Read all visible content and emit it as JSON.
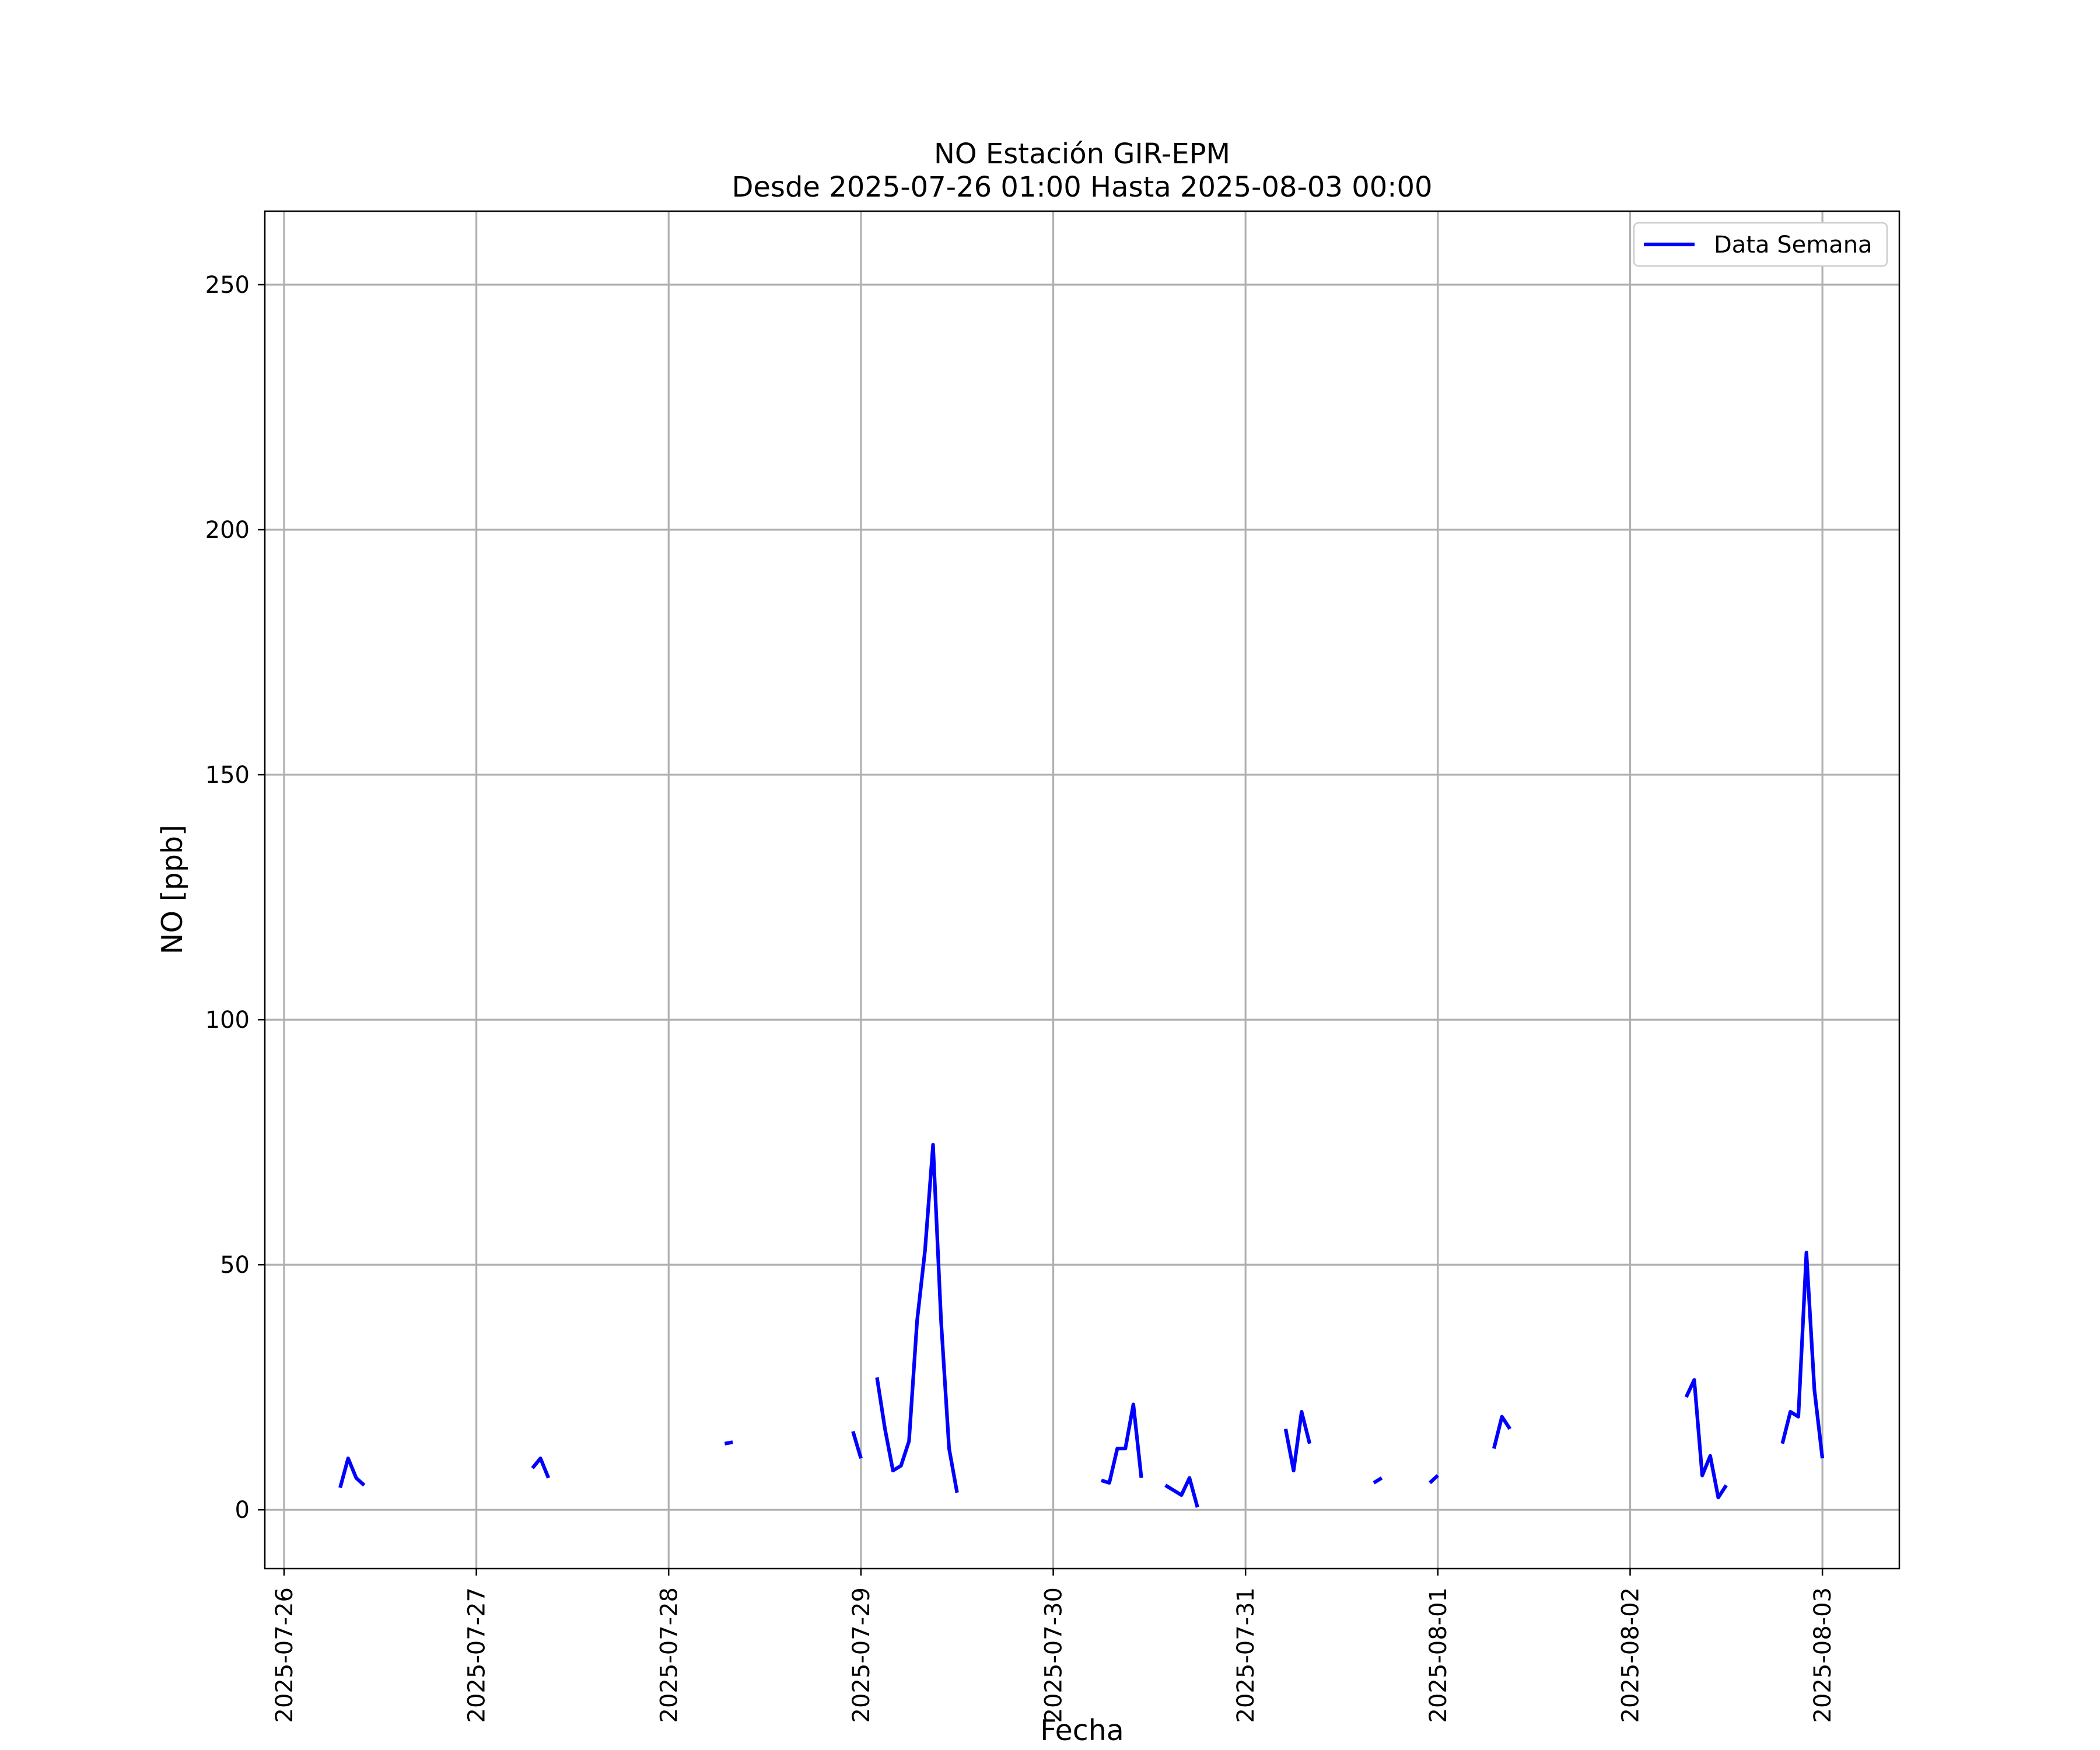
{
  "chart_data": {
    "type": "line",
    "title": "NO Estación GIR-EPM",
    "subtitle": "Desde 2025-07-26 01:00 Hasta 2025-08-03 00:00",
    "xlabel": "Fecha",
    "ylabel": "NO [ppb]",
    "x_ticks": [
      "2025-07-26",
      "2025-07-27",
      "2025-07-28",
      "2025-07-29",
      "2025-07-30",
      "2025-07-31",
      "2025-08-01",
      "2025-08-02",
      "2025-08-03"
    ],
    "y_ticks": [
      0,
      50,
      100,
      150,
      200,
      250
    ],
    "xlim": [
      "2025-07-25 21:36",
      "2025-08-03 09:36"
    ],
    "ylim": [
      -12,
      265
    ],
    "grid": true,
    "legend_position": "upper right",
    "colors": {
      "line": "#0000ff",
      "grid": "#b0b0b0",
      "frame": "#000000",
      "background": "#ffffff"
    },
    "series": [
      {
        "name": "Data Semana",
        "segments": [
          [
            [
              "2025-07-26 07:00",
              4.5
            ],
            [
              "2025-07-26 08:00",
              10.5
            ],
            [
              "2025-07-26 09:00",
              6.5
            ],
            [
              "2025-07-26 10:00",
              5
            ]
          ],
          [
            [
              "2025-07-27 07:00",
              8.5
            ],
            [
              "2025-07-27 08:00",
              10.5
            ],
            [
              "2025-07-27 09:00",
              6.5
            ]
          ],
          [
            [
              "2025-07-28 07:00",
              13.5
            ],
            [
              "2025-07-28 08:00",
              13.8
            ]
          ],
          [
            [
              "2025-07-28 23:00",
              16
            ],
            [
              "2025-07-29 00:00",
              10.5
            ]
          ],
          [
            [
              "2025-07-29 02:00",
              27
            ],
            [
              "2025-07-29 03:00",
              16.5
            ],
            [
              "2025-07-29 04:00",
              8
            ],
            [
              "2025-07-29 05:00",
              9
            ],
            [
              "2025-07-29 06:00",
              14
            ],
            [
              "2025-07-29 07:00",
              38.5
            ],
            [
              "2025-07-29 08:00",
              53
            ],
            [
              "2025-07-29 09:00",
              74.5
            ],
            [
              "2025-07-29 10:00",
              38.5
            ],
            [
              "2025-07-29 11:00",
              12.5
            ],
            [
              "2025-07-29 12:00",
              3.5
            ]
          ],
          [
            [
              "2025-07-30 06:00",
              6
            ],
            [
              "2025-07-30 07:00",
              5.5
            ],
            [
              "2025-07-30 08:00",
              12.5
            ],
            [
              "2025-07-30 09:00",
              12.5
            ],
            [
              "2025-07-30 10:00",
              21.5
            ],
            [
              "2025-07-30 11:00",
              6.5
            ]
          ],
          [
            [
              "2025-07-30 14:00",
              5
            ],
            [
              "2025-07-30 15:00",
              4
            ],
            [
              "2025-07-30 16:00",
              3
            ],
            [
              "2025-07-30 17:00",
              6.5
            ],
            [
              "2025-07-30 18:00",
              0.5
            ]
          ],
          [
            [
              "2025-07-31 05:00",
              16.5
            ],
            [
              "2025-07-31 06:00",
              8
            ],
            [
              "2025-07-31 07:00",
              20
            ],
            [
              "2025-07-31 08:00",
              13.5
            ]
          ],
          [
            [
              "2025-07-31 16:00",
              5.5
            ],
            [
              "2025-07-31 17:00",
              6.5
            ]
          ],
          [
            [
              "2025-07-31 23:00",
              5.5
            ],
            [
              "2025-08-01 00:00",
              7
            ]
          ],
          [
            [
              "2025-08-01 07:00",
              12.5
            ],
            [
              "2025-08-01 08:00",
              19
            ],
            [
              "2025-08-01 09:00",
              16.5
            ]
          ],
          [
            [
              "2025-08-02 07:00",
              23
            ],
            [
              "2025-08-02 08:00",
              26.5
            ],
            [
              "2025-08-02 09:00",
              7
            ],
            [
              "2025-08-02 10:00",
              11
            ],
            [
              "2025-08-02 11:00",
              2.5
            ],
            [
              "2025-08-02 12:00",
              5
            ]
          ],
          [
            [
              "2025-08-02 19:00",
              13.5
            ],
            [
              "2025-08-02 20:00",
              20
            ],
            [
              "2025-08-02 21:00",
              19
            ],
            [
              "2025-08-02 22:00",
              52.5
            ],
            [
              "2025-08-02 23:00",
              24.5
            ],
            [
              "2025-08-03 00:00",
              10.5
            ]
          ]
        ]
      }
    ]
  }
}
